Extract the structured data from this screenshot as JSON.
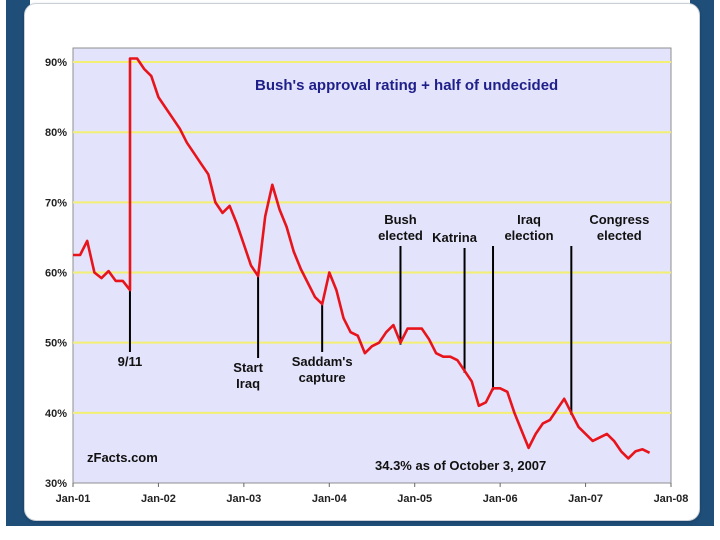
{
  "chart_data": {
    "type": "line",
    "title": "Bush's approval rating + half of undecided",
    "source_text": "zFacts.com",
    "status_text": "34.3% as of October 3, 2007",
    "xlabel": "",
    "ylabel": "",
    "x_ticks": [
      "Jan-01",
      "Jan-02",
      "Jan-03",
      "Jan-04",
      "Jan-05",
      "Jan-06",
      "Jan-07",
      "Jan-08"
    ],
    "y_ticks": [
      "30%",
      "40%",
      "50%",
      "60%",
      "70%",
      "80%",
      "90%"
    ],
    "xlim": [
      "2001-01",
      "2008-01"
    ],
    "ylim": [
      30,
      92
    ],
    "grid": "horizontal",
    "legend": "none",
    "colors": {
      "line": "#e8141c",
      "plot_bg": "#e3e3fb",
      "grid": "#f2ef72",
      "title": "#1f1f8a"
    },
    "series": [
      {
        "values": [
          [
            "2001-01",
            62.5
          ],
          [
            "2001-02",
            62.5
          ],
          [
            "2001-03",
            64.5
          ],
          [
            "2001-04",
            60.0
          ],
          [
            "2001-05",
            59.2
          ],
          [
            "2001-06",
            60.2
          ],
          [
            "2001-07",
            58.8
          ],
          [
            "2001-08",
            58.8
          ],
          [
            "2001-09",
            57.5
          ],
          [
            "2001-09",
            90.5
          ],
          [
            "2001-10",
            90.5
          ],
          [
            "2001-11",
            89.0
          ],
          [
            "2001-12",
            88.0
          ],
          [
            "2002-01",
            85.0
          ],
          [
            "2002-02",
            83.5
          ],
          [
            "2002-03",
            82.0
          ],
          [
            "2002-04",
            80.5
          ],
          [
            "2002-05",
            78.5
          ],
          [
            "2002-06",
            77.0
          ],
          [
            "2002-07",
            75.5
          ],
          [
            "2002-08",
            74.0
          ],
          [
            "2002-09",
            70.0
          ],
          [
            "2002-10",
            68.5
          ],
          [
            "2002-11",
            69.5
          ],
          [
            "2002-12",
            67.0
          ],
          [
            "2003-01",
            64.0
          ],
          [
            "2003-02",
            61.0
          ],
          [
            "2003-03",
            59.5
          ],
          [
            "2003-04",
            68.0
          ],
          [
            "2003-05",
            72.5
          ],
          [
            "2003-06",
            69.0
          ],
          [
            "2003-07",
            66.5
          ],
          [
            "2003-08",
            63.0
          ],
          [
            "2003-09",
            60.5
          ],
          [
            "2003-10",
            58.5
          ],
          [
            "2003-11",
            56.5
          ],
          [
            "2003-12",
            55.5
          ],
          [
            "2004-01",
            60.0
          ],
          [
            "2004-02",
            57.5
          ],
          [
            "2004-03",
            53.5
          ],
          [
            "2004-04",
            51.5
          ],
          [
            "2004-05",
            51.0
          ],
          [
            "2004-06",
            48.5
          ],
          [
            "2004-07",
            49.5
          ],
          [
            "2004-08",
            50.0
          ],
          [
            "2004-09",
            51.5
          ],
          [
            "2004-10",
            52.5
          ],
          [
            "2004-11",
            50.0
          ],
          [
            "2004-12",
            52.0
          ],
          [
            "2005-01",
            52.0
          ],
          [
            "2005-02",
            52.0
          ],
          [
            "2005-03",
            50.5
          ],
          [
            "2005-04",
            48.5
          ],
          [
            "2005-05",
            48.0
          ],
          [
            "2005-06",
            48.0
          ],
          [
            "2005-07",
            47.5
          ],
          [
            "2005-08",
            46.0
          ],
          [
            "2005-09",
            44.5
          ],
          [
            "2005-10",
            41.0
          ],
          [
            "2005-11",
            41.5
          ],
          [
            "2005-12",
            43.5
          ],
          [
            "2006-01",
            43.5
          ],
          [
            "2006-02",
            43.0
          ],
          [
            "2006-03",
            40.0
          ],
          [
            "2006-04",
            37.5
          ],
          [
            "2006-05",
            35.0
          ],
          [
            "2006-06",
            37.0
          ],
          [
            "2006-07",
            38.5
          ],
          [
            "2006-08",
            39.0
          ],
          [
            "2006-09",
            40.5
          ],
          [
            "2006-10",
            42.0
          ],
          [
            "2006-11",
            40.0
          ],
          [
            "2006-12",
            38.0
          ],
          [
            "2007-01",
            37.0
          ],
          [
            "2007-02",
            36.0
          ],
          [
            "2007-03",
            36.5
          ],
          [
            "2007-04",
            37.0
          ],
          [
            "2007-05",
            36.0
          ],
          [
            "2007-06",
            34.5
          ],
          [
            "2007-07",
            33.5
          ],
          [
            "2007-08",
            34.5
          ],
          [
            "2007-09",
            34.8
          ],
          [
            "2007-10",
            34.3
          ]
        ]
      }
    ],
    "annotations": [
      {
        "label": [
          "9/11"
        ],
        "date": "2001-09"
      },
      {
        "label": [
          "Start",
          "Iraq"
        ],
        "date": "2003-03"
      },
      {
        "label": [
          "Saddam's",
          "capture"
        ],
        "date": "2003-12"
      },
      {
        "label": [
          "Bush",
          "elected"
        ],
        "date": "2004-11"
      },
      {
        "label": [
          "Katrina"
        ],
        "date": "2005-08"
      },
      {
        "label": [
          "Iraq",
          "election"
        ],
        "date": "2005-12"
      },
      {
        "label": [
          "Congress",
          "elected"
        ],
        "date": "2006-11"
      }
    ]
  }
}
